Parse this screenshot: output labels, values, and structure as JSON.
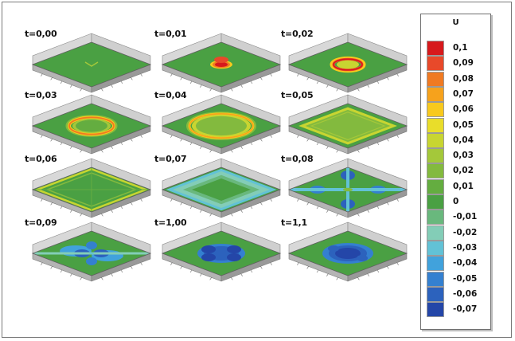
{
  "panels": [
    {
      "label": "t=0,00",
      "stage": 0
    },
    {
      "label": "t=0,01",
      "stage": 1
    },
    {
      "label": "t=0,02",
      "stage": 2
    },
    {
      "label": "t=0,03",
      "stage": 3
    },
    {
      "label": "t=0,04",
      "stage": 4
    },
    {
      "label": "t=0,05",
      "stage": 5
    },
    {
      "label": "t=0,06",
      "stage": 6
    },
    {
      "label": "t=0,07",
      "stage": 7
    },
    {
      "label": "t=0,08",
      "stage": 8
    },
    {
      "label": "t=0,09",
      "stage": 9
    },
    {
      "label": "t=1,00",
      "stage": 10
    },
    {
      "label": "t=1,1",
      "stage": 11
    }
  ],
  "legend": {
    "title": "U",
    "levels": [
      {
        "label": "0,1",
        "color": "#d7191c"
      },
      {
        "label": "0,09",
        "color": "#e8492a"
      },
      {
        "label": "0,08",
        "color": "#f07a22"
      },
      {
        "label": "0,07",
        "color": "#f6a21c"
      },
      {
        "label": "0,06",
        "color": "#f8c91d"
      },
      {
        "label": "0,05",
        "color": "#e9dd2a"
      },
      {
        "label": "0,04",
        "color": "#c8d531"
      },
      {
        "label": "0,03",
        "color": "#a4c83a"
      },
      {
        "label": "0,02",
        "color": "#83ba3e"
      },
      {
        "label": "0,01",
        "color": "#64ad40"
      },
      {
        "label": "0",
        "color": "#4aa043"
      },
      {
        "label": "-0,01",
        "color": "#69b87d"
      },
      {
        "label": "-0,02",
        "color": "#83cdb7"
      },
      {
        "label": "-0,03",
        "color": "#62c2d6"
      },
      {
        "label": "-0,04",
        "color": "#41a2dc"
      },
      {
        "label": "-0,05",
        "color": "#3480d0"
      },
      {
        "label": "-0,06",
        "color": "#2c62bd"
      },
      {
        "label": "-0,07",
        "color": "#2446a8"
      }
    ]
  }
}
